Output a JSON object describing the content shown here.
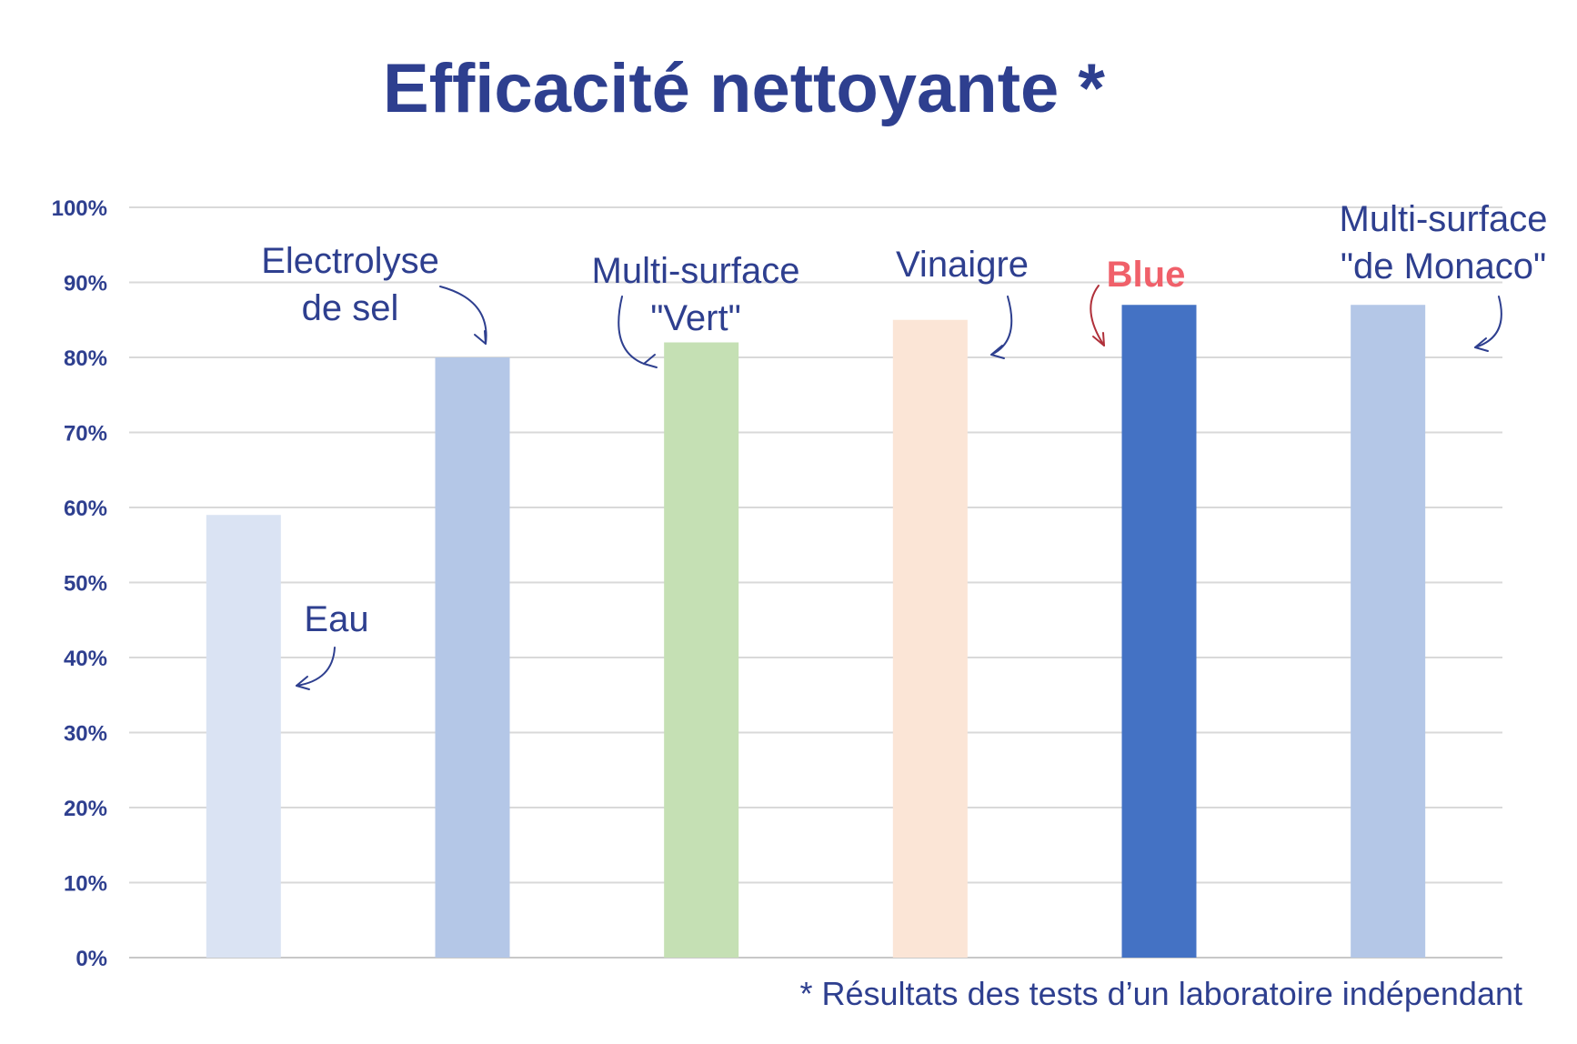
{
  "chart_data": {
    "type": "bar",
    "title": "Efficacité nettoyante *",
    "footnote": "* Résultats des tests d’un laboratoire indépendant",
    "ylim": [
      0,
      100
    ],
    "yticks": [
      0,
      10,
      20,
      30,
      40,
      50,
      60,
      70,
      80,
      90,
      100
    ],
    "ytick_suffix": "%",
    "grid": true,
    "categories": [
      {
        "lines": [
          "Eau"
        ],
        "value": 59,
        "color": "#dae3f3",
        "highlight": false
      },
      {
        "lines": [
          "Electrolyse",
          "de sel"
        ],
        "value": 80,
        "color": "#b4c7e7",
        "highlight": false
      },
      {
        "lines": [
          "Multi-surface",
          "\"Vert\""
        ],
        "value": 82,
        "color": "#c5e0b4",
        "highlight": false
      },
      {
        "lines": [
          "Vinaigre"
        ],
        "value": 85,
        "color": "#fbe5d6",
        "highlight": false
      },
      {
        "lines": [
          "Blue"
        ],
        "value": 87,
        "color": "#4472c4",
        "highlight": true
      },
      {
        "lines": [
          "Multi-surface",
          "\"de Monaco\""
        ],
        "value": 87,
        "color": "#b4c7e7",
        "highlight": false
      }
    ]
  }
}
